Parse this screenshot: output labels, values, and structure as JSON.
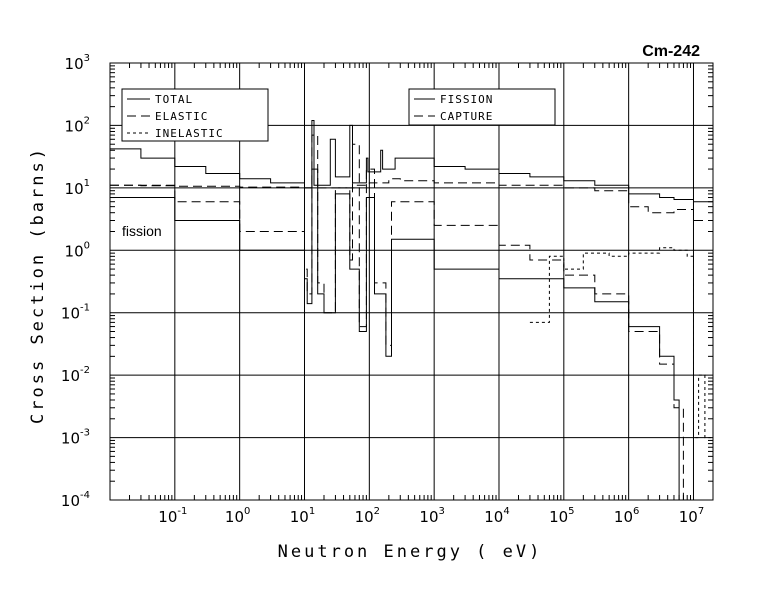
{
  "chart_data": {
    "type": "line",
    "title": "Cm-242",
    "xlabel": "Neutron Energy ( eV)",
    "ylabel": "Cross Section (barns)",
    "xscale": "log",
    "yscale": "log",
    "xlim": [
      0.01,
      20000000
    ],
    "ylim": [
      0.0001,
      1000
    ],
    "grid": true,
    "x_ticks": [
      {
        "base": "10",
        "exp": "-1",
        "value": 0.1
      },
      {
        "base": "10",
        "exp": "0",
        "value": 1
      },
      {
        "base": "10",
        "exp": "1",
        "value": 10
      },
      {
        "base": "10",
        "exp": "2",
        "value": 100
      },
      {
        "base": "10",
        "exp": "3",
        "value": 1000
      },
      {
        "base": "10",
        "exp": "4",
        "value": 10000
      },
      {
        "base": "10",
        "exp": "5",
        "value": 100000
      },
      {
        "base": "10",
        "exp": "6",
        "value": 1000000
      },
      {
        "base": "10",
        "exp": "7",
        "value": 10000000
      }
    ],
    "y_ticks": [
      {
        "base": "10",
        "exp": "3",
        "value": 1000
      },
      {
        "base": "10",
        "exp": "2",
        "value": 100
      },
      {
        "base": "10",
        "exp": "1",
        "value": 10
      },
      {
        "base": "10",
        "exp": "0",
        "value": 1
      },
      {
        "base": "10",
        "exp": "-1",
        "value": 0.1
      },
      {
        "base": "10",
        "exp": "-2",
        "value": 0.01
      },
      {
        "base": "10",
        "exp": "-3",
        "value": 0.001
      },
      {
        "base": "10",
        "exp": "-4",
        "value": 0.0001
      }
    ],
    "legend_left": [
      "TOTAL",
      "ELASTIC",
      "INELASTIC"
    ],
    "legend_right": [
      "FISSION",
      "CAPTURE"
    ],
    "annotation": "fission",
    "series": [
      {
        "name": "TOTAL",
        "dash": "",
        "points": [
          [
            0.01,
            42
          ],
          [
            0.03,
            30
          ],
          [
            0.1,
            22
          ],
          [
            0.3,
            17
          ],
          [
            1,
            14
          ],
          [
            3,
            12
          ],
          [
            10,
            10
          ],
          [
            13,
            120
          ],
          [
            14,
            11
          ],
          [
            25,
            60
          ],
          [
            30,
            15
          ],
          [
            50,
            100
          ],
          [
            55,
            12
          ],
          [
            90,
            30
          ],
          [
            95,
            18
          ],
          [
            150,
            40
          ],
          [
            160,
            20
          ],
          [
            250,
            30
          ],
          [
            1000,
            22
          ],
          [
            3000,
            20
          ],
          [
            10000,
            17
          ],
          [
            30000,
            15
          ],
          [
            100000,
            13
          ],
          [
            300000,
            11
          ],
          [
            1000000,
            8
          ],
          [
            3000000,
            7
          ],
          [
            5000000,
            6.5
          ],
          [
            10000000,
            6
          ],
          [
            20000000,
            5.5
          ]
        ]
      },
      {
        "name": "ELASTIC",
        "dash": "9 5",
        "points": [
          [
            0.01,
            11
          ],
          [
            0.03,
            10.8
          ],
          [
            0.1,
            10.6
          ],
          [
            1,
            10.3
          ],
          [
            10,
            10
          ],
          [
            20,
            10
          ],
          [
            40,
            10
          ],
          [
            60,
            11
          ],
          [
            100,
            12
          ],
          [
            200,
            14
          ],
          [
            300,
            13
          ],
          [
            1000,
            12
          ],
          [
            10000,
            11
          ],
          [
            100000,
            10
          ],
          [
            300000,
            9
          ],
          [
            1000000,
            5
          ],
          [
            2000000,
            4
          ],
          [
            5000000,
            4.5
          ],
          [
            10000000,
            3
          ],
          [
            20000000,
            2.5
          ]
        ]
      },
      {
        "name": "INELASTIC",
        "dash": "3 3",
        "points": [
          [
            30000,
            0.07
          ],
          [
            50000,
            0.07
          ],
          [
            60000,
            0.8
          ],
          [
            100000,
            0.5
          ],
          [
            200000,
            0.9
          ],
          [
            500000,
            0.8
          ],
          [
            1000000,
            0.9
          ],
          [
            3000000,
            1.1
          ],
          [
            5000000,
            1
          ],
          [
            8000000,
            0.8
          ],
          [
            10000000,
            0.001
          ],
          [
            12000000,
            0.01
          ],
          [
            15000000,
            0.001
          ],
          [
            20000000,
            0.01
          ]
        ]
      },
      {
        "name": "FISSION",
        "dash": "",
        "points": [
          [
            0.01,
            7
          ],
          [
            0.1,
            3
          ],
          [
            1,
            1
          ],
          [
            10,
            0.35
          ],
          [
            11,
            0.14
          ],
          [
            13,
            20
          ],
          [
            16,
            0.2
          ],
          [
            20,
            0.1
          ],
          [
            30,
            8
          ],
          [
            50,
            0.5
          ],
          [
            70,
            0.05
          ],
          [
            90,
            7
          ],
          [
            120,
            0.2
          ],
          [
            180,
            0.02
          ],
          [
            220,
            1.5
          ],
          [
            1000,
            0.5
          ],
          [
            10000,
            0.35
          ],
          [
            100000,
            0.25
          ],
          [
            300000,
            0.15
          ],
          [
            1000000,
            0.06
          ],
          [
            3000000,
            0.02
          ],
          [
            5000000,
            0.004
          ],
          [
            6000000,
            0.0001
          ],
          [
            10000000,
            0.0001
          ]
        ]
      },
      {
        "name": "CAPTURE",
        "dash": "9 5",
        "points": [
          [
            0.01,
            11
          ],
          [
            0.1,
            6
          ],
          [
            1,
            2
          ],
          [
            10,
            0.5
          ],
          [
            11,
            0.2
          ],
          [
            13,
            70
          ],
          [
            16,
            0.3
          ],
          [
            20,
            0.1
          ],
          [
            30,
            10
          ],
          [
            50,
            0.7
          ],
          [
            55,
            50
          ],
          [
            70,
            0.06
          ],
          [
            90,
            20
          ],
          [
            120,
            0.3
          ],
          [
            180,
            0.03
          ],
          [
            220,
            6
          ],
          [
            1000,
            2.5
          ],
          [
            10000,
            1.2
          ],
          [
            30000,
            0.7
          ],
          [
            100000,
            0.4
          ],
          [
            300000,
            0.2
          ],
          [
            1000000,
            0.05
          ],
          [
            3000000,
            0.015
          ],
          [
            5000000,
            0.003
          ],
          [
            7000000,
            0.0001
          ]
        ]
      }
    ]
  }
}
